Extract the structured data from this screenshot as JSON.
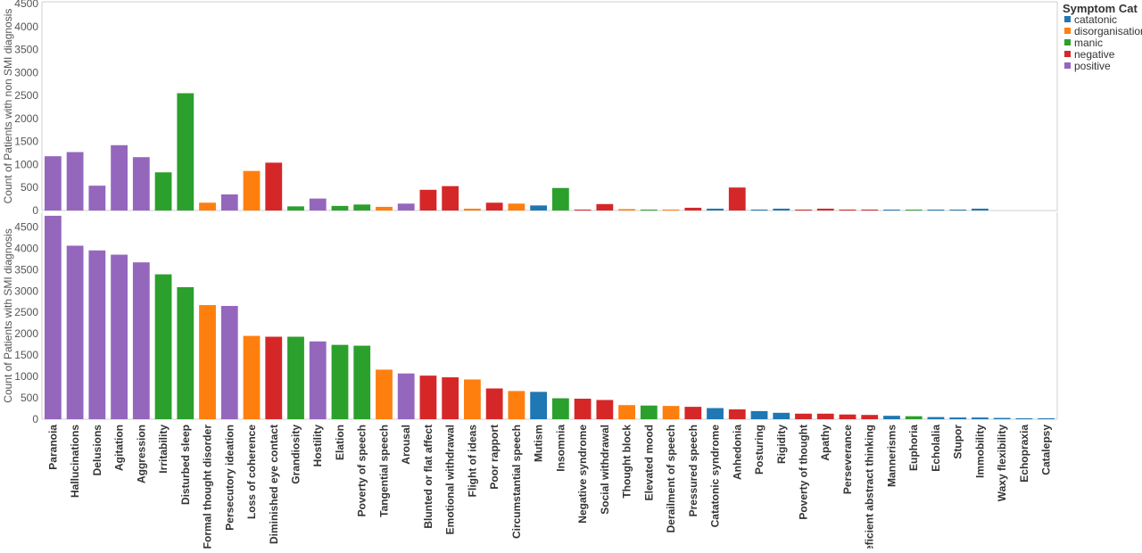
{
  "chart_data": {
    "type": "bar",
    "legend": {
      "title": "Symptom Cat",
      "placement": "top-right",
      "items": [
        {
          "name": "catatonic",
          "color": "#1f77b4"
        },
        {
          "name": "disorganisation",
          "color": "#ff7f0e"
        },
        {
          "name": "manic",
          "color": "#2ca02c"
        },
        {
          "name": "negative",
          "color": "#d62728"
        },
        {
          "name": "positive",
          "color": "#9467bd"
        }
      ]
    },
    "categories": [
      "Paranoia",
      "Hallucinations",
      "Delusions",
      "Agitation",
      "Aggression",
      "Irritability",
      "Disturbed sleep",
      "Formal thought disorder",
      "Persecutory ideation",
      "Loss of coherence",
      "Diminished eye contact",
      "Grandiosity",
      "Hostility",
      "Elation",
      "Poverty of speech",
      "Tangential speech",
      "Arousal",
      "Blunted or flat affect",
      "Emotional withdrawal",
      "Flight of ideas",
      "Poor rapport",
      "Circumstantial speech",
      "Mutism",
      "Insomnia",
      "Negative syndrome",
      "Social withdrawal",
      "Thought block",
      "Elevated mood",
      "Derailment of speech",
      "Pressured speech",
      "Catatonic syndrome",
      "Anhedonia",
      "Posturing",
      "Rigidity",
      "Poverty of thought",
      "Apathy",
      "Perseverance",
      "Deficient abstract thinking",
      "Mannerisms",
      "Euphoria",
      "Echolalia",
      "Stupor",
      "Immobility",
      "Waxy flexibility",
      "Echopraxia",
      "Catalepsy"
    ],
    "category_group": [
      "positive",
      "positive",
      "positive",
      "positive",
      "positive",
      "manic",
      "manic",
      "disorganisation",
      "positive",
      "disorganisation",
      "negative",
      "manic",
      "positive",
      "manic",
      "manic",
      "disorganisation",
      "positive",
      "negative",
      "negative",
      "disorganisation",
      "negative",
      "disorganisation",
      "catatonic",
      "manic",
      "negative",
      "negative",
      "disorganisation",
      "manic",
      "disorganisation",
      "negative",
      "catatonic",
      "negative",
      "catatonic",
      "catatonic",
      "negative",
      "negative",
      "negative",
      "negative",
      "catatonic",
      "manic",
      "catatonic",
      "catatonic",
      "catatonic",
      "catatonic",
      "catatonic",
      "catatonic"
    ],
    "panels": [
      {
        "ylabel": "Count of Patients with non SMI diagnosis",
        "ylim": [
          0,
          4500
        ],
        "yticks": [
          0,
          500,
          1000,
          1500,
          2000,
          2500,
          3000,
          3500,
          4000,
          4500
        ],
        "values": [
          1180,
          1270,
          540,
          1420,
          1160,
          830,
          2550,
          170,
          350,
          860,
          1040,
          90,
          260,
          100,
          130,
          80,
          150,
          450,
          530,
          40,
          170,
          150,
          110,
          490,
          20,
          140,
          30,
          20,
          20,
          60,
          40,
          500,
          20,
          40,
          20,
          40,
          20,
          20,
          10,
          10,
          10,
          10,
          40,
          0,
          0,
          0
        ]
      },
      {
        "ylabel": "Count of Patients with SMI diagnosis",
        "ylim": [
          0,
          4800
        ],
        "yticks": [
          0,
          500,
          1000,
          1500,
          2000,
          2500,
          3000,
          3500,
          4000,
          4500
        ],
        "values": [
          4760,
          4060,
          3950,
          3850,
          3670,
          3390,
          3090,
          2670,
          2650,
          1950,
          1930,
          1930,
          1820,
          1740,
          1720,
          1160,
          1070,
          1020,
          980,
          930,
          720,
          660,
          640,
          490,
          480,
          450,
          330,
          320,
          310,
          290,
          260,
          230,
          190,
          150,
          130,
          130,
          110,
          100,
          80,
          70,
          50,
          40,
          40,
          30,
          20,
          10
        ]
      }
    ],
    "grid": false
  }
}
